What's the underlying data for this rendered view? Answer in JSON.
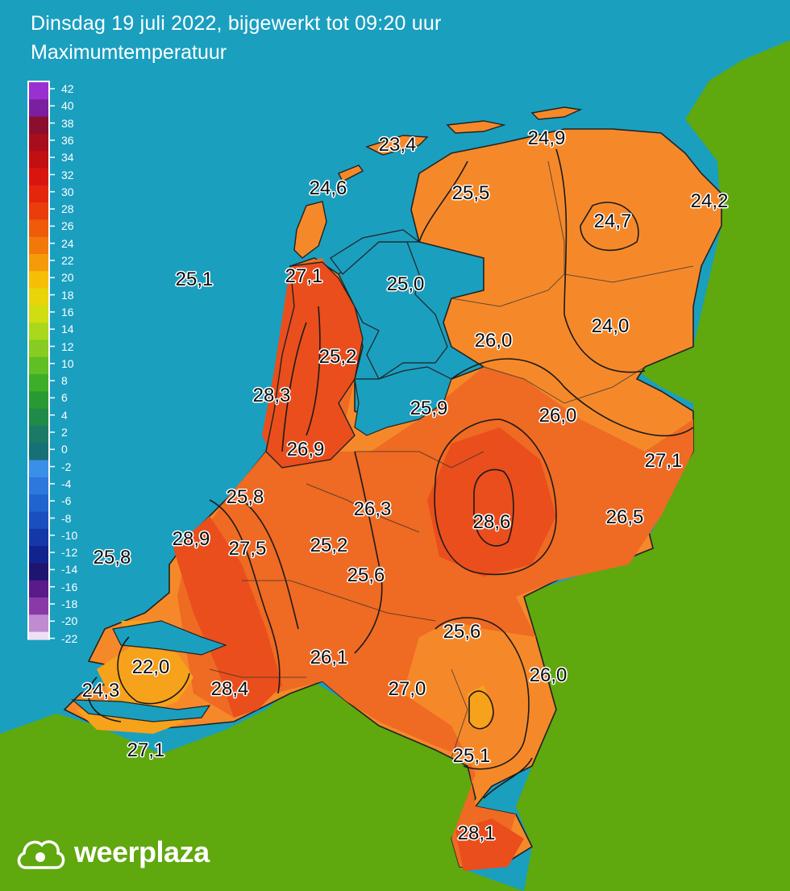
{
  "header": {
    "title": "Dinsdag 19 juli 2022, bijgewerkt tot 09:20 uur",
    "subtitle": "Maximumtemperatuur"
  },
  "legend": {
    "ticks": [
      "42",
      "40",
      "38",
      "36",
      "34",
      "32",
      "30",
      "28",
      "26",
      "24",
      "22",
      "20",
      "18",
      "16",
      "14",
      "12",
      "10",
      "8",
      "6",
      "4",
      "2",
      "0",
      "-2",
      "-4",
      "-6",
      "-8",
      "-10",
      "-12",
      "-14",
      "-16",
      "-18",
      "-20",
      "-22"
    ],
    "colors": [
      "#9b30d0",
      "#7a1fa0",
      "#8a0f2e",
      "#a80d1c",
      "#c20f12",
      "#d8150f",
      "#e4260d",
      "#ea3d0c",
      "#ef5a0b",
      "#f2780a",
      "#f59a08",
      "#f6bf06",
      "#e8d40a",
      "#cfdd12",
      "#a9d81c",
      "#86cc22",
      "#5fbf24",
      "#3cae2a",
      "#279a34",
      "#1f8a4a",
      "#1b7a66",
      "#167075",
      "#3a8fe8",
      "#2d78dd",
      "#2064cf",
      "#1a4fc0",
      "#1538a8",
      "#11248d",
      "#1d1570",
      "#5b1a8a",
      "#8a3aa8",
      "#c08bd0",
      "#eee0f2"
    ]
  },
  "temperatures": [
    {
      "id": "terschelling",
      "label": "23,4"
    },
    {
      "id": "schiermonnikoog",
      "label": "24,9"
    },
    {
      "id": "texel",
      "label": "24,6"
    },
    {
      "id": "leeuwarden",
      "label": "25,5"
    },
    {
      "id": "nieuw-beerta",
      "label": "24,2"
    },
    {
      "id": "eelde",
      "label": "24,7"
    },
    {
      "id": "noordzee",
      "label": "25,1"
    },
    {
      "id": "den-helder",
      "label": "27,1"
    },
    {
      "id": "stavoren",
      "label": "25,0"
    },
    {
      "id": "hoogeveen",
      "label": "24,0"
    },
    {
      "id": "berkhout",
      "label": "25,2"
    },
    {
      "id": "marknesse",
      "label": "26,0"
    },
    {
      "id": "ijmuiden",
      "label": "28,3"
    },
    {
      "id": "lelystad",
      "label": "25,9"
    },
    {
      "id": "heino",
      "label": "26,0"
    },
    {
      "id": "twenthe",
      "label": "27,1"
    },
    {
      "id": "schiphol",
      "label": "26,9"
    },
    {
      "id": "valkenburg",
      "label": "25,8"
    },
    {
      "id": "de-bilt",
      "label": "26,3"
    },
    {
      "id": "deelen",
      "label": "28,6"
    },
    {
      "id": "hupsel",
      "label": "26,5"
    },
    {
      "id": "hoek-van-holland",
      "label": "28,9"
    },
    {
      "id": "rotterdam",
      "label": "27,5"
    },
    {
      "id": "cabauw",
      "label": "25,2"
    },
    {
      "id": "noordzee-zuid",
      "label": "25,8"
    },
    {
      "id": "herwijnen",
      "label": "25,6"
    },
    {
      "id": "volkel",
      "label": "25,6"
    },
    {
      "id": "wilhelminadorp",
      "label": "22,0"
    },
    {
      "id": "woensdrecht-noord",
      "label": "26,1"
    },
    {
      "id": "vlissingen",
      "label": "24,3"
    },
    {
      "id": "gilze-rijen",
      "label": "28,4"
    },
    {
      "id": "eindhoven",
      "label": "27,0"
    },
    {
      "id": "arcen",
      "label": "26,0"
    },
    {
      "id": "westdorpe",
      "label": "27,1"
    },
    {
      "id": "ell",
      "label": "25,1"
    },
    {
      "id": "maastricht",
      "label": "28,1"
    }
  ],
  "brand": {
    "name": "weerplaza"
  },
  "colors": {
    "sea": "#1a9fbf",
    "land_outside": "#5fa80e",
    "temp_22_24": "#f7a21b",
    "temp_24_26": "#f5892a",
    "temp_26_28": "#ef6a22",
    "temp_28_30": "#ea4e1c"
  }
}
